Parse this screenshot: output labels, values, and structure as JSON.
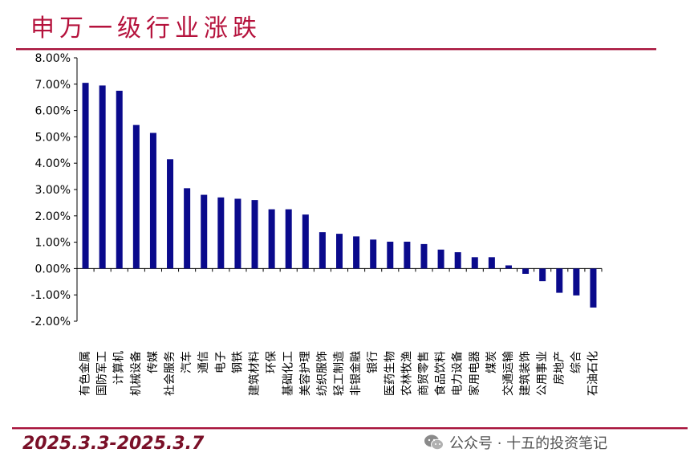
{
  "title": "申万一级行业涨跌",
  "date_range": "2025.3.3-2025.3.7",
  "watermark": {
    "text": "公众号 · 十五的投资笔记",
    "icon": "wechat-icon"
  },
  "colors": {
    "bar": "#0a0a8c",
    "accent": "#b5123c"
  },
  "chart_data": {
    "type": "bar",
    "title": "",
    "xlabel": "",
    "ylabel": "",
    "ylim": [
      -2.0,
      8.0
    ],
    "y_ticks": [
      "8.00%",
      "7.00%",
      "6.00%",
      "5.00%",
      "4.00%",
      "3.00%",
      "2.00%",
      "1.00%",
      "0.00%",
      "-1.00%",
      "-2.00%"
    ],
    "y_tick_values": [
      8,
      7,
      6,
      5,
      4,
      3,
      2,
      1,
      0,
      -1,
      -2
    ],
    "grid": false,
    "categories": [
      "有色金属",
      "国防军工",
      "计算机",
      "机械设备",
      "传媒",
      "社会服务",
      "汽车",
      "通信",
      "电子",
      "钢铁",
      "建筑材料",
      "环保",
      "基础化工",
      "美容护理",
      "纺织服饰",
      "轻工制造",
      "非银金融",
      "银行",
      "医药生物",
      "农林牧渔",
      "商贸零售",
      "食品饮料",
      "电力设备",
      "家用电器",
      "煤炭",
      "交通运输",
      "建筑装饰",
      "公用事业",
      "房地产",
      "综合",
      "石油石化"
    ],
    "values": [
      7.05,
      6.95,
      6.75,
      5.45,
      5.15,
      4.15,
      3.05,
      2.8,
      2.7,
      2.65,
      2.6,
      2.25,
      2.25,
      2.05,
      1.38,
      1.32,
      1.22,
      1.1,
      1.02,
      1.02,
      0.93,
      0.72,
      0.62,
      0.43,
      0.43,
      0.12,
      -0.2,
      -0.48,
      -0.92,
      -1.02,
      -1.48
    ]
  }
}
